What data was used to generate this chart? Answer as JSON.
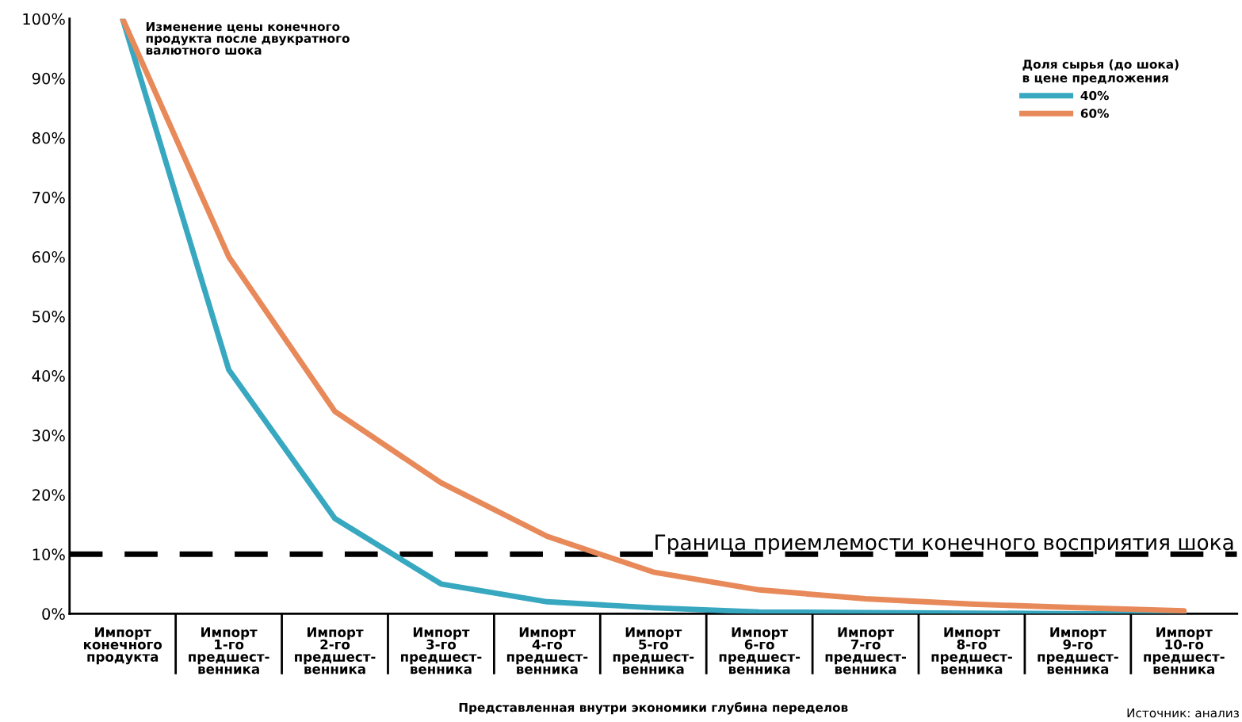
{
  "chart_data": {
    "type": "line",
    "categories": [
      "Импорт\nконечного\nпродукта",
      "Импорт\n1-го\nпредшест-\nвенника",
      "Импорт\n2-го\nпредшест-\nвенника",
      "Импорт\n3-го\nпредшест-\nвенника",
      "Импорт\n4-го\nпредшест-\nвенника",
      "Импорт\n5-го\nпредшест-\nвенника",
      "Импорт\n6-го\nпредшест-\nвенника",
      "Импорт\n7-го\nпредшест-\nвенника",
      "Импорт\n8-го\nпредшест-\nвенника",
      "Импорт\n9-го\nпредшест-\nвенника",
      "Импорт\n10-го\nпредшест-\nвенника"
    ],
    "series": [
      {
        "name": "40%",
        "color": "#38a8c0",
        "values": [
          100,
          41,
          16,
          5,
          2,
          1,
          0.3,
          0.2,
          0.1,
          0,
          0
        ]
      },
      {
        "name": "60%",
        "color": "#e8895a",
        "values": [
          100,
          60,
          34,
          22,
          13,
          7,
          4,
          2.5,
          1.6,
          1,
          0.5
        ]
      }
    ],
    "ylim": [
      0,
      100
    ],
    "yticks": [
      {
        "value": 0,
        "label": "0%"
      },
      {
        "value": 10,
        "label": "10%"
      },
      {
        "value": 20,
        "label": "20%"
      },
      {
        "value": 30,
        "label": "30%"
      },
      {
        "value": 40,
        "label": "40%"
      },
      {
        "value": 50,
        "label": "50%"
      },
      {
        "value": 60,
        "label": "60%"
      },
      {
        "value": 70,
        "label": "70%"
      },
      {
        "value": 80,
        "label": "80%"
      },
      {
        "value": 90,
        "label": "90%"
      },
      {
        "value": 100,
        "label": "100%"
      }
    ],
    "xlabel": "Представленная внутри экономики глубина переделов",
    "ylabel": "Изменение цены конечного\nпродукта после двукратного\nвалютного шока",
    "legend_title": "Доля сырья (до шока)\nв цене предложения",
    "legend": "top right",
    "grid": false,
    "marker": "none",
    "line_style": "solid",
    "ref_lines": [
      {
        "axis": "y",
        "value": 10,
        "label": "Граница приемлемости конечного восприятия шока",
        "color": "#000000",
        "line_style": "dashed"
      }
    ],
    "annotations": [
      "Источник: анализ"
    ]
  }
}
